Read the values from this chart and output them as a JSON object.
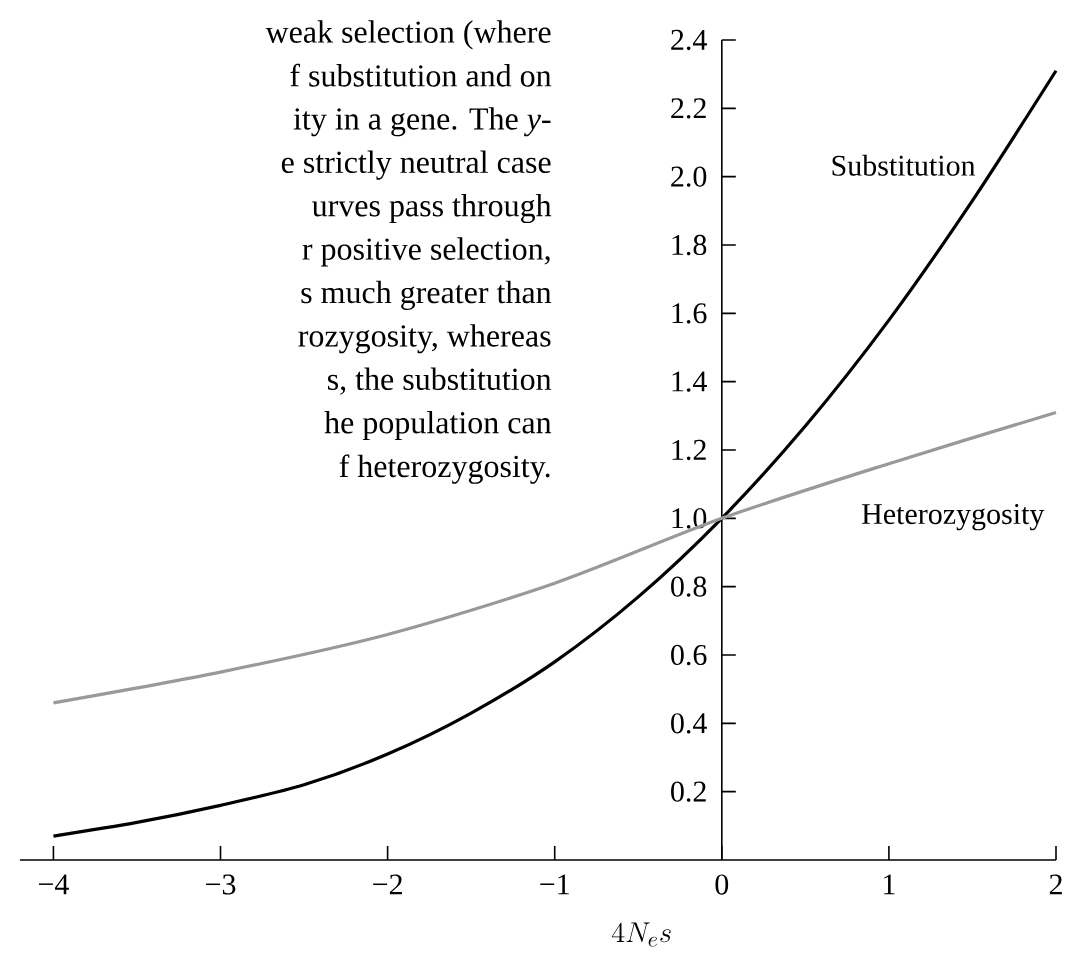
{
  "chart_data": {
    "type": "line",
    "xlabel": "4N_{e}s",
    "annotations": [
      "weak selection (where",
      "f substitution and on",
      "ity in a gene. The *y*-",
      "e strictly neutral case",
      "urves pass through",
      "r positive selection,",
      "s much greater than",
      "rozygosity, whereas",
      "s, the substitution",
      "he population can",
      "f heterozygosity."
    ],
    "series": [
      {
        "name": "Substitution",
        "color": "#000000",
        "x": [
          -4,
          -3.5,
          -3,
          -2.5,
          -2,
          -1.5,
          -1,
          -0.5,
          0,
          0.5,
          1,
          1.5,
          2
        ],
        "values": [
          0.07,
          0.11,
          0.16,
          0.22,
          0.31,
          0.43,
          0.58,
          0.77,
          1.0,
          1.27,
          1.58,
          1.93,
          2.31
        ]
      },
      {
        "name": "Heterozygosity",
        "color": "#999999",
        "x": [
          -4,
          -3,
          -2,
          -1,
          0,
          1,
          2
        ],
        "values": [
          0.46,
          0.55,
          0.66,
          0.81,
          1.0,
          1.16,
          1.31
        ]
      }
    ],
    "xlim": [
      -4.2,
      2
    ],
    "ylim": [
      0,
      2.4
    ],
    "xticks": [
      {
        "value": -4,
        "label": "−4"
      },
      {
        "value": -3,
        "label": "−3"
      },
      {
        "value": -2,
        "label": "−2"
      },
      {
        "value": -1,
        "label": "−1"
      },
      0,
      1,
      2
    ],
    "yticks": [
      0.2,
      0.4,
      0.6,
      0.8,
      {
        "value": 1,
        "label": "1.0"
      },
      1.2,
      1.4,
      1.6,
      1.8,
      {
        "value": 2,
        "label": "2.0"
      },
      2.2,
      2.4
    ],
    "grid": false,
    "marker": "none",
    "line_style": "solid"
  }
}
